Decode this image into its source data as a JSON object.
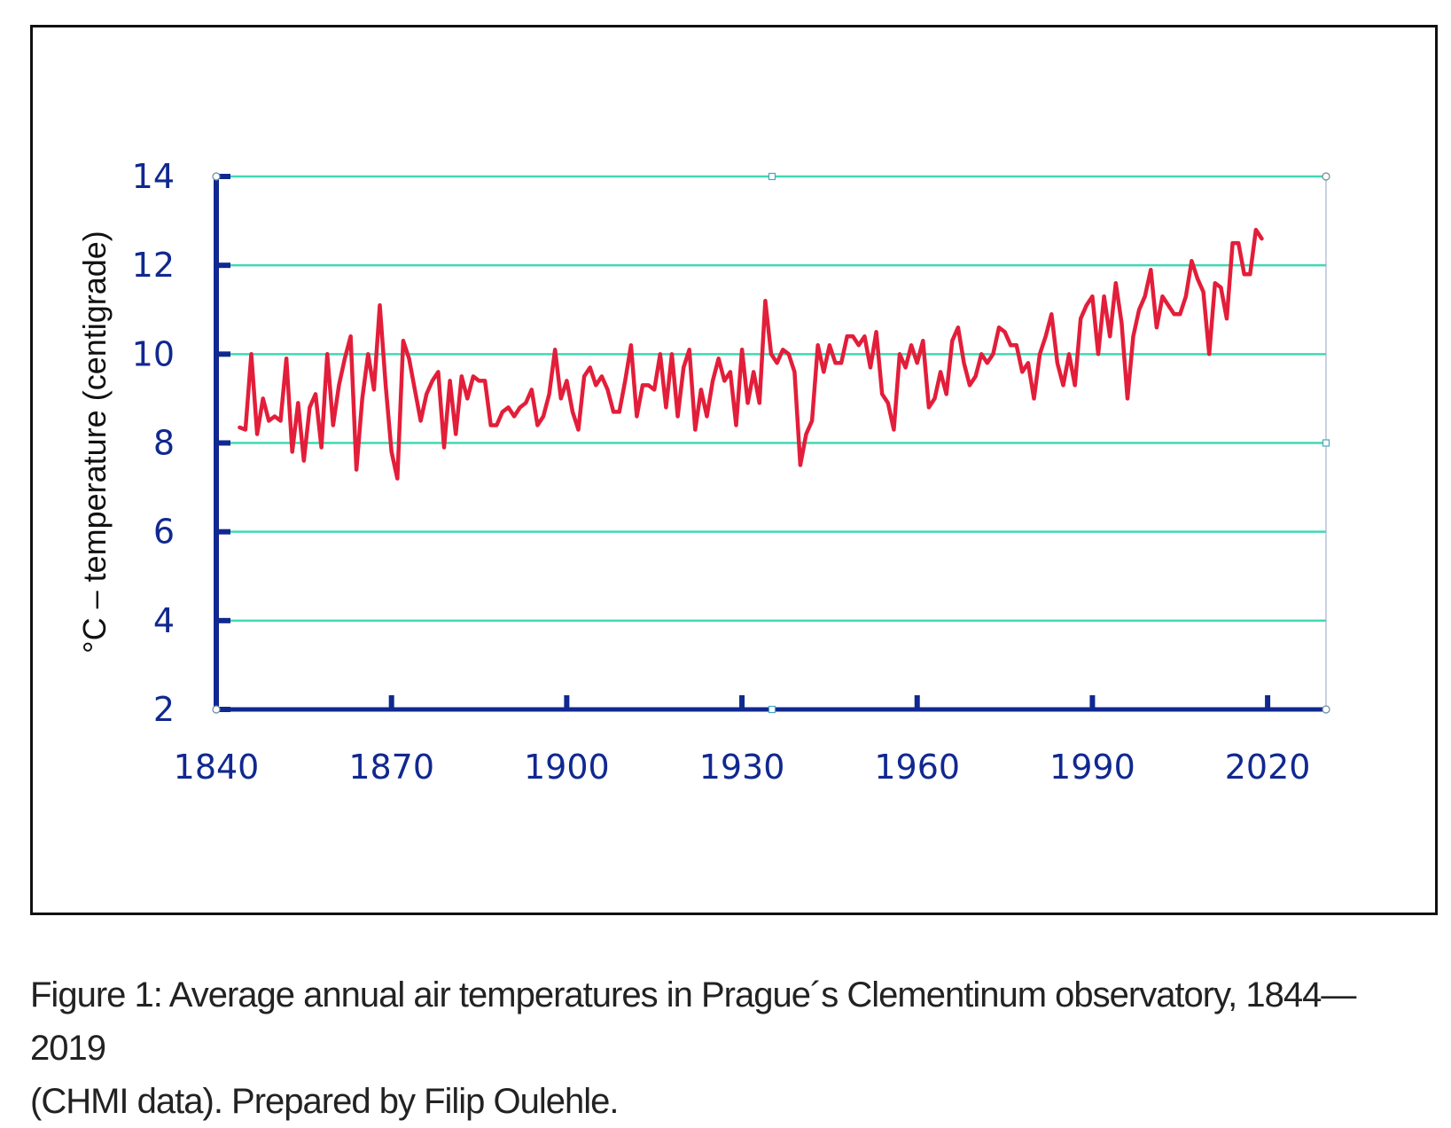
{
  "chart_data": {
    "type": "line",
    "title": "",
    "xlabel": "",
    "ylabel": "°C – temperature (centigrade)",
    "xlim": [
      1840,
      2030
    ],
    "ylim": [
      2,
      14
    ],
    "xticks": [
      1840,
      1870,
      1900,
      1930,
      1960,
      1990,
      2020
    ],
    "yticks": [
      2,
      4,
      6,
      8,
      10,
      12,
      14
    ],
    "grid": true,
    "legend": "none",
    "colors": {
      "series": "#e31e3a",
      "grid": "#3fd9b4",
      "axis": "#102890",
      "tick_label": "#102890"
    },
    "series": [
      {
        "x": [
          1844,
          1845,
          1846,
          1847,
          1848,
          1849,
          1850,
          1851,
          1852,
          1853,
          1854,
          1855,
          1856,
          1857,
          1858,
          1859,
          1860,
          1861,
          1862,
          1863,
          1864,
          1865,
          1866,
          1867,
          1868,
          1869,
          1870,
          1871,
          1872,
          1873,
          1874,
          1875,
          1876,
          1877,
          1878,
          1879,
          1880,
          1881,
          1882,
          1883,
          1884,
          1885,
          1886,
          1887,
          1888,
          1889,
          1890,
          1891,
          1892,
          1893,
          1894,
          1895,
          1896,
          1897,
          1898,
          1899,
          1900,
          1901,
          1902,
          1903,
          1904,
          1905,
          1906,
          1907,
          1908,
          1909,
          1910,
          1911,
          1912,
          1913,
          1914,
          1915,
          1916,
          1917,
          1918,
          1919,
          1920,
          1921,
          1922,
          1923,
          1924,
          1925,
          1926,
          1927,
          1928,
          1929,
          1930,
          1931,
          1932,
          1933,
          1934,
          1935,
          1936,
          1937,
          1938,
          1939,
          1940,
          1941,
          1942,
          1943,
          1944,
          1945,
          1946,
          1947,
          1948,
          1949,
          1950,
          1951,
          1952,
          1953,
          1954,
          1955,
          1956,
          1957,
          1958,
          1959,
          1960,
          1961,
          1962,
          1963,
          1964,
          1965,
          1966,
          1967,
          1968,
          1969,
          1970,
          1971,
          1972,
          1973,
          1974,
          1975,
          1976,
          1977,
          1978,
          1979,
          1980,
          1981,
          1982,
          1983,
          1984,
          1985,
          1986,
          1987,
          1988,
          1989,
          1990,
          1991,
          1992,
          1993,
          1994,
          1995,
          1996,
          1997,
          1998,
          1999,
          2000,
          2001,
          2002,
          2003,
          2004,
          2005,
          2006,
          2007,
          2008,
          2009,
          2010,
          2011,
          2012,
          2013,
          2014,
          2015,
          2016,
          2017,
          2018,
          2019
        ],
        "values": [
          8.35,
          8.3,
          10.0,
          8.2,
          9.0,
          8.5,
          8.6,
          8.5,
          9.9,
          7.8,
          8.9,
          7.6,
          8.8,
          9.1,
          7.9,
          10.0,
          8.4,
          9.3,
          9.9,
          10.4,
          7.4,
          9.0,
          10.0,
          9.2,
          11.1,
          9.3,
          7.8,
          7.2,
          10.3,
          9.9,
          9.2,
          8.5,
          9.1,
          9.4,
          9.6,
          7.9,
          9.4,
          8.2,
          9.5,
          9.0,
          9.5,
          9.4,
          9.4,
          8.4,
          8.4,
          8.7,
          8.8,
          8.6,
          8.8,
          8.9,
          9.2,
          8.4,
          8.6,
          9.1,
          10.1,
          9.0,
          9.4,
          8.7,
          8.3,
          9.5,
          9.7,
          9.3,
          9.5,
          9.2,
          8.7,
          8.7,
          9.4,
          10.2,
          8.6,
          9.3,
          9.3,
          9.2,
          10.0,
          8.8,
          10.0,
          8.6,
          9.7,
          10.1,
          8.3,
          9.2,
          8.6,
          9.4,
          9.9,
          9.4,
          9.6,
          8.4,
          10.1,
          8.9,
          9.6,
          8.9,
          11.2,
          10.0,
          9.8,
          10.1,
          10.0,
          9.6,
          7.5,
          8.2,
          8.5,
          10.2,
          9.6,
          10.2,
          9.8,
          9.8,
          10.4,
          10.4,
          10.2,
          10.4,
          9.7,
          10.5,
          9.1,
          8.9,
          8.3,
          10.0,
          9.7,
          10.2,
          9.8,
          10.3,
          8.8,
          9.0,
          9.6,
          9.1,
          10.3,
          10.6,
          9.8,
          9.3,
          9.5,
          10.0,
          9.8,
          10.0,
          10.6,
          10.5,
          10.2,
          10.2,
          9.6,
          9.8,
          9.0,
          10.0,
          10.4,
          10.9,
          9.8,
          9.3,
          10.0,
          9.3,
          10.8,
          11.1,
          11.3,
          10.0,
          11.3,
          10.4,
          11.6,
          10.7,
          9.0,
          10.4,
          11.0,
          11.3,
          11.9,
          10.6,
          11.3,
          11.1,
          10.9,
          10.9,
          11.3,
          12.1,
          11.7,
          11.4,
          10.0,
          11.6,
          11.5,
          10.8,
          12.5,
          12.5,
          11.8,
          11.8,
          12.8,
          12.6
        ]
      }
    ]
  },
  "caption": {
    "line1": "Figure 1: Average annual air temperatures in Prague´s Clementinum observatory, 1844—2019",
    "line2": "(CHMI data). Prepared by Filip Oulehle."
  }
}
